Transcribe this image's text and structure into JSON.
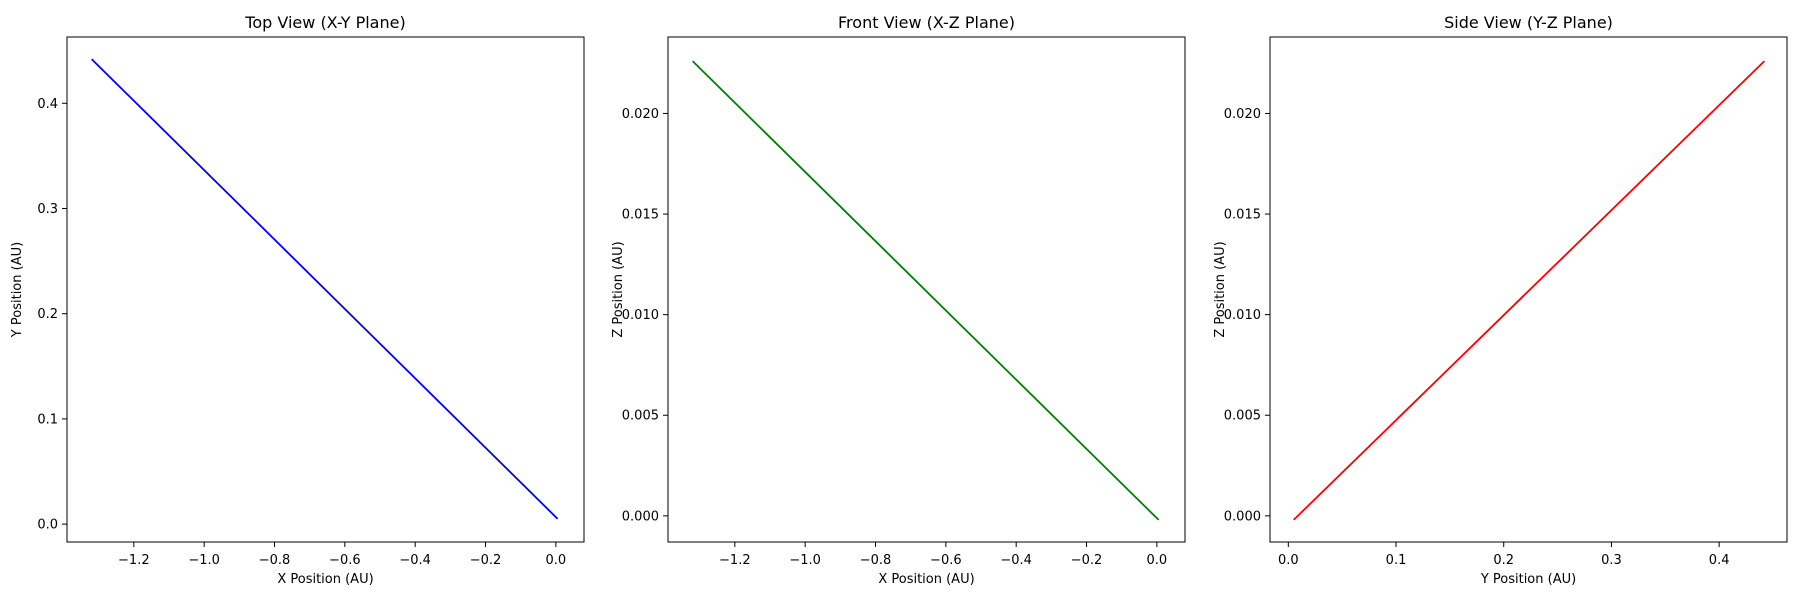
{
  "chart_data": [
    {
      "type": "line",
      "title": "Top View (X-Y Plane)",
      "xlabel": "X Position (AU)",
      "ylabel": "Y Position (AU)",
      "xlim": [
        -1.39,
        0.08
      ],
      "ylim": [
        -0.017,
        0.463
      ],
      "xticks": [
        -1.2,
        -1.0,
        -0.8,
        -0.6,
        -0.4,
        -0.2,
        0.0
      ],
      "yticks": [
        0.0,
        0.1,
        0.2,
        0.3,
        0.4
      ],
      "xtick_labels": [
        "−1.2",
        "−1.0",
        "−0.8",
        "−0.6",
        "−0.4",
        "−0.2",
        "0.0"
      ],
      "ytick_labels": [
        "0.0",
        "0.1",
        "0.2",
        "0.3",
        "0.4"
      ],
      "grid": false,
      "series": [
        {
          "color": "#0000ff",
          "x": [
            -1.32,
            0.005
          ],
          "y": [
            0.442,
            0.005
          ]
        }
      ]
    },
    {
      "type": "line",
      "title": "Front View (X-Z Plane)",
      "xlabel": "X Position (AU)",
      "ylabel": "Z Position (AU)",
      "xlim": [
        -1.39,
        0.08
      ],
      "ylim": [
        -0.0013,
        0.0238
      ],
      "xticks": [
        -1.2,
        -1.0,
        -0.8,
        -0.6,
        -0.4,
        -0.2,
        0.0
      ],
      "yticks": [
        0.0,
        0.005,
        0.01,
        0.015,
        0.02
      ],
      "xtick_labels": [
        "−1.2",
        "−1.0",
        "−0.8",
        "−0.6",
        "−0.4",
        "−0.2",
        "0.0"
      ],
      "ytick_labels": [
        "0.000",
        "0.005",
        "0.010",
        "0.015",
        "0.020"
      ],
      "grid": false,
      "series": [
        {
          "color": "#008000",
          "x": [
            -1.32,
            0.005
          ],
          "y": [
            0.0226,
            -0.0002
          ]
        }
      ]
    },
    {
      "type": "line",
      "title": "Side View (Y-Z Plane)",
      "xlabel": "Y Position (AU)",
      "ylabel": "Z Position (AU)",
      "xlim": [
        -0.017,
        0.463
      ],
      "ylim": [
        -0.0013,
        0.0238
      ],
      "xticks": [
        0.0,
        0.1,
        0.2,
        0.3,
        0.4
      ],
      "yticks": [
        0.0,
        0.005,
        0.01,
        0.015,
        0.02
      ],
      "xtick_labels": [
        "0.0",
        "0.1",
        "0.2",
        "0.3",
        "0.4"
      ],
      "ytick_labels": [
        "0.000",
        "0.005",
        "0.010",
        "0.015",
        "0.020"
      ],
      "grid": false,
      "series": [
        {
          "color": "#ff0000",
          "x": [
            0.005,
            0.442
          ],
          "y": [
            -0.0002,
            0.0226
          ]
        }
      ]
    }
  ]
}
